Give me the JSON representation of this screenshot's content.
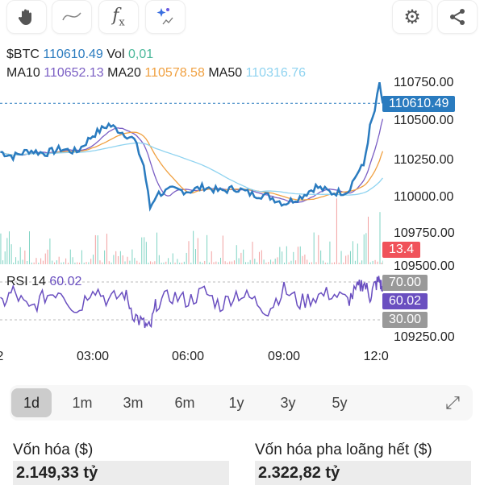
{
  "toolbar": {
    "tools": [
      "hand-icon",
      "line-icon",
      "function-icon",
      "ai-sparkle-chart-icon"
    ],
    "actions": [
      "gear-icon",
      "share-icon"
    ]
  },
  "legend": {
    "symbol": "$BTC",
    "price": "110610.49",
    "vol_label": "Vol",
    "vol": "0,01",
    "ma10_label": "MA10",
    "ma10": "110652.13",
    "ma20_label": "MA20",
    "ma20": "110578.58",
    "ma50_label": "MA50",
    "ma50": "110316.76"
  },
  "colors": {
    "price": "#2a7bbf",
    "ma10": "#7b5fc4",
    "ma20": "#f0a040",
    "ma50": "#8fd3f0",
    "volume_up": "#7fd3c3",
    "volume_down": "#f2a0a0",
    "rsi": "#6a4fc0",
    "volume_box": "#f0525a",
    "rsi_box": "#6a4fc0",
    "band_box": "#999999"
  },
  "price_axis": {
    "labels": [
      "110750.00",
      "110500.00",
      "110250.00",
      "110000.00",
      "109750.00",
      "109500.00",
      "109250.00"
    ],
    "current": "110610.49"
  },
  "volume": {
    "value": "13.4"
  },
  "rsi": {
    "label": "RSI 14",
    "value": "60.02",
    "upper": "70.00",
    "lower": "30.00"
  },
  "time_axis": [
    "2",
    "03:00",
    "06:00",
    "09:00",
    "12:0"
  ],
  "chart_data": {
    "type": "line",
    "x": [
      0.1,
      0.5,
      1,
      1.5,
      2,
      2.5,
      3,
      3.5,
      4,
      4.3,
      4.6,
      4.8,
      5,
      5.5,
      6,
      6.5,
      7,
      7.5,
      8,
      8.5,
      9,
      9.5,
      10,
      10.5,
      11,
      11.3,
      11.5,
      11.7,
      11.85,
      12,
      12.1
    ],
    "series": [
      {
        "name": "$BTC",
        "values": [
          110290,
          110260,
          110300,
          110280,
          110310,
          110290,
          110400,
          110470,
          110410,
          110370,
          110200,
          109920,
          110010,
          110040,
          110030,
          110060,
          110030,
          110050,
          110010,
          110000,
          109950,
          109990,
          110060,
          110020,
          110030,
          110150,
          110200,
          110450,
          110560,
          110740,
          110610
        ]
      }
    ],
    "rsi_values": [
      45,
      60,
      40,
      55,
      62,
      38,
      66,
      50,
      58,
      35,
      25,
      20,
      48,
      55,
      50,
      60,
      45,
      58,
      52,
      40,
      62,
      48,
      55,
      58,
      50,
      62,
      70,
      55,
      66,
      72,
      60
    ],
    "ylim": [
      109250,
      110800
    ]
  },
  "ranges": {
    "items": [
      "1d",
      "1m",
      "3m",
      "6m",
      "1y",
      "3y",
      "5y"
    ],
    "selected": "1d"
  },
  "stats": [
    {
      "label": "Vốn hóa ($)",
      "value": "2.149,33 tỷ"
    },
    {
      "label": "Vốn hóa pha loãng hết ($)",
      "value": "2.322,82 tỷ"
    }
  ]
}
